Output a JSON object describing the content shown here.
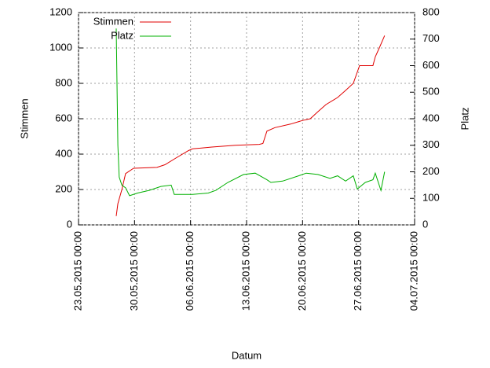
{
  "chart_data": {
    "type": "line",
    "x_label": "Datum",
    "y_label": "Stimmen",
    "y2_label": "Platz",
    "xlim": [
      "23.05.2015 00:00",
      "04.07.2015 00:00"
    ],
    "xticks": [
      "23.05.2015 00:00",
      "30.05.2015 00:00",
      "06.06.2015 00:00",
      "13.06.2015 00:00",
      "20.06.2015 00:00",
      "27.06.2015 00:00",
      "04.07.2015 00:00"
    ],
    "ylim": [
      0,
      1200
    ],
    "yticks": [
      0,
      200,
      400,
      600,
      800,
      1000,
      1200
    ],
    "y2lim": [
      0,
      800
    ],
    "y2ticks": [
      0,
      100,
      200,
      300,
      400,
      500,
      600,
      700,
      800
    ],
    "grid": true,
    "legend": "top-left",
    "series": [
      {
        "name": "Stimmen",
        "color": "#e00000",
        "x": [
          "27.05.2015 17:00",
          "27.05.2015 22:00",
          "28.05.2015 10:00",
          "28.05.2015 21:00",
          "29.05.2015 21:00",
          "01.06.2015 19:00",
          "02.06.2015 19:00",
          "04.06.2015 06:00",
          "05.06.2015 18:00",
          "06.06.2015 06:00",
          "08.06.2015 16:00",
          "11.06.2015 15:00",
          "14.06.2015 14:00",
          "15.06.2015 01:00",
          "15.06.2015 13:00",
          "16.06.2015 13:00",
          "18.06.2015 12:00",
          "19.06.2015 23:00",
          "20.06.2015 23:00",
          "21.06.2015 22:00",
          "22.06.2015 22:00",
          "24.06.2015 09:00",
          "25.06.2015 09:00",
          "26.06.2015 08:00",
          "27.06.2015 03:00",
          "28.06.2015 19:00",
          "29.06.2015 02:00",
          "29.06.2015 14:00",
          "30.06.2015 06:00"
        ],
        "values": [
          50,
          120,
          200,
          290,
          320,
          325,
          340,
          380,
          420,
          430,
          440,
          450,
          455,
          460,
          530,
          550,
          570,
          590,
          600,
          640,
          680,
          720,
          760,
          800,
          900,
          900,
          950,
          1000,
          1070
        ]
      },
      {
        "name": "Platz",
        "color": "#00b000",
        "axis": "y2",
        "x": [
          "27.05.2015 17:00",
          "27.05.2015 22:00",
          "28.05.2015 02:00",
          "28.05.2015 10:00",
          "28.05.2015 21:00",
          "29.05.2015 09:00",
          "30.05.2015 09:00",
          "31.05.2015 20:00",
          "02.06.2015 07:00",
          "03.06.2015 14:00",
          "03.06.2015 23:00",
          "06.06.2015 06:00",
          "08.06.2015 05:00",
          "09.06.2015 04:00",
          "10.06.2015 16:00",
          "12.06.2015 15:00",
          "14.06.2015 02:00",
          "15.06.2015 13:00",
          "16.06.2015 01:00",
          "17.06.2015 12:00",
          "19.06.2015 12:00",
          "20.06.2015 11:00",
          "21.06.2015 22:00",
          "23.06.2015 10:00",
          "24.06.2015 09:00",
          "25.06.2015 09:00",
          "26.06.2015 08:00",
          "26.06.2015 20:00",
          "27.06.2015 20:00",
          "28.06.2015 19:00",
          "29.06.2015 02:00",
          "29.06.2015 19:00",
          "30.06.2015 06:00"
        ],
        "values": [
          740,
          300,
          180,
          150,
          140,
          110,
          120,
          130,
          145,
          150,
          115,
          115,
          120,
          130,
          160,
          190,
          195,
          170,
          160,
          165,
          185,
          195,
          190,
          175,
          185,
          165,
          185,
          135,
          160,
          170,
          195,
          130,
          200
        ]
      }
    ]
  }
}
